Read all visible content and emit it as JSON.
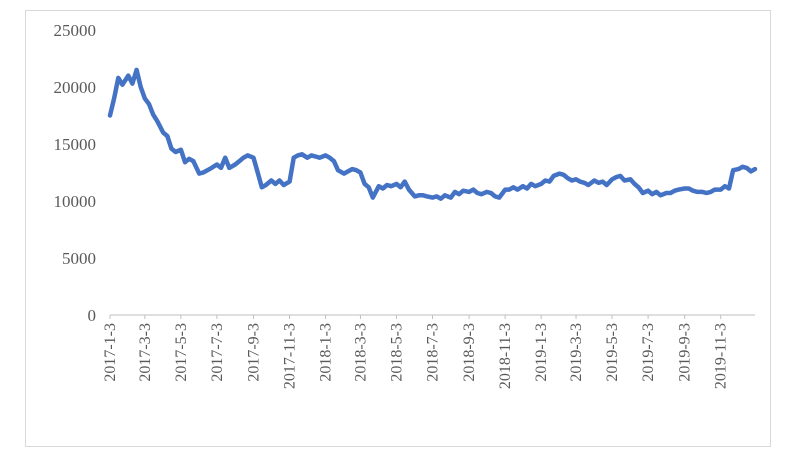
{
  "chart_data": {
    "type": "line",
    "title": "",
    "xlabel": "",
    "ylabel": "",
    "ylim": [
      0,
      25000
    ],
    "y_ticks": [
      0,
      5000,
      10000,
      15000,
      20000,
      25000
    ],
    "grid": false,
    "legend": "none",
    "x_tick_labels": [
      "2017-1-3",
      "2017-3-3",
      "2017-5-3",
      "2017-7-3",
      "2017-9-3",
      "2017-11-3",
      "2018-1-3",
      "2018-3-3",
      "2018-5-3",
      "2018-7-3",
      "2018-9-3",
      "2018-11-3",
      "2019-1-3",
      "2019-3-3",
      "2019-5-3",
      "2019-7-3",
      "2019-9-3",
      "2019-11-3"
    ],
    "series": [
      {
        "color": "#4472c4",
        "x": [
          "2017-1-3",
          "2017-1-10",
          "2017-1-17",
          "2017-1-24",
          "2017-2-3",
          "2017-2-10",
          "2017-2-17",
          "2017-2-24",
          "2017-3-3",
          "2017-3-10",
          "2017-3-17",
          "2017-3-24",
          "2017-4-3",
          "2017-4-10",
          "2017-4-17",
          "2017-4-24",
          "2017-5-3",
          "2017-5-10",
          "2017-5-17",
          "2017-5-24",
          "2017-6-3",
          "2017-6-10",
          "2017-6-17",
          "2017-6-24",
          "2017-7-3",
          "2017-7-10",
          "2017-7-17",
          "2017-7-24",
          "2017-8-3",
          "2017-8-10",
          "2017-8-17",
          "2017-8-24",
          "2017-9-3",
          "2017-9-10",
          "2017-9-17",
          "2017-9-24",
          "2017-10-3",
          "2017-10-10",
          "2017-10-17",
          "2017-10-24",
          "2017-11-3",
          "2017-11-10",
          "2017-11-17",
          "2017-11-24",
          "2017-12-3",
          "2017-12-10",
          "2017-12-17",
          "2017-12-24",
          "2018-1-3",
          "2018-1-10",
          "2018-1-17",
          "2018-1-24",
          "2018-2-3",
          "2018-2-10",
          "2018-2-17",
          "2018-2-24",
          "2018-3-3",
          "2018-3-10",
          "2018-3-17",
          "2018-3-24",
          "2018-4-3",
          "2018-4-10",
          "2018-4-17",
          "2018-4-24",
          "2018-5-3",
          "2018-5-10",
          "2018-5-17",
          "2018-5-24",
          "2018-6-3",
          "2018-6-10",
          "2018-6-17",
          "2018-6-24",
          "2018-7-3",
          "2018-7-10",
          "2018-7-17",
          "2018-7-24",
          "2018-8-3",
          "2018-8-10",
          "2018-8-17",
          "2018-8-24",
          "2018-9-3",
          "2018-9-10",
          "2018-9-17",
          "2018-9-24",
          "2018-10-3",
          "2018-10-10",
          "2018-10-17",
          "2018-10-24",
          "2018-11-3",
          "2018-11-10",
          "2018-11-17",
          "2018-11-24",
          "2018-12-3",
          "2018-12-10",
          "2018-12-17",
          "2018-12-24",
          "2019-1-3",
          "2019-1-10",
          "2019-1-17",
          "2019-1-24",
          "2019-2-3",
          "2019-2-10",
          "2019-2-17",
          "2019-2-24",
          "2019-3-3",
          "2019-3-10",
          "2019-3-17",
          "2019-3-24",
          "2019-4-3",
          "2019-4-10",
          "2019-4-17",
          "2019-4-24",
          "2019-5-3",
          "2019-5-10",
          "2019-5-17",
          "2019-5-24",
          "2019-6-3",
          "2019-6-10",
          "2019-6-17",
          "2019-6-24",
          "2019-7-3",
          "2019-7-10",
          "2019-7-17",
          "2019-7-24",
          "2019-8-3",
          "2019-8-10",
          "2019-8-17",
          "2019-8-24",
          "2019-9-3",
          "2019-9-10",
          "2019-9-17",
          "2019-9-24",
          "2019-10-3",
          "2019-10-10",
          "2019-10-17",
          "2019-10-24",
          "2019-11-3",
          "2019-11-10",
          "2019-11-17",
          "2019-11-24",
          "2019-12-3",
          "2019-12-10",
          "2019-12-17",
          "2019-12-24",
          "2019-12-31"
        ],
        "values": [
          17500,
          19000,
          20800,
          20200,
          21000,
          20300,
          21500,
          20000,
          19000,
          18500,
          17600,
          17000,
          16000,
          15700,
          14600,
          14300,
          14500,
          13400,
          13700,
          13500,
          12400,
          12500,
          12700,
          12900,
          13200,
          12900,
          13800,
          12900,
          13200,
          13500,
          13800,
          14000,
          13800,
          12500,
          11200,
          11400,
          11800,
          11500,
          11800,
          11400,
          11700,
          13800,
          14000,
          14100,
          13800,
          14000,
          13900,
          13800,
          14000,
          13800,
          13500,
          12700,
          12400,
          12600,
          12800,
          12700,
          12500,
          11500,
          11200,
          10300,
          11300,
          11100,
          11400,
          11300,
          11500,
          11200,
          11700,
          11000,
          10400,
          10500,
          10500,
          10400,
          10300,
          10400,
          10200,
          10500,
          10300,
          10800,
          10600,
          10900,
          10800,
          11000,
          10700,
          10600,
          10800,
          10700,
          10400,
          10300,
          11000,
          11000,
          11200,
          11000,
          11300,
          11100,
          11500,
          11300,
          11500,
          11800,
          11700,
          12200,
          12400,
          12300,
          12000,
          11800,
          11900,
          11700,
          11600,
          11400,
          11800,
          11600,
          11700,
          11400,
          11900,
          12100,
          12200,
          11800,
          11900,
          11500,
          11200,
          10700,
          10900,
          10600,
          10800,
          10500,
          10700,
          10700,
          10900,
          11000,
          11100,
          11100,
          10900,
          10800,
          10800,
          10700,
          10800,
          11000,
          11000,
          11300,
          11100,
          12700,
          12800,
          13000,
          12900,
          12600,
          12800
        ]
      }
    ]
  }
}
